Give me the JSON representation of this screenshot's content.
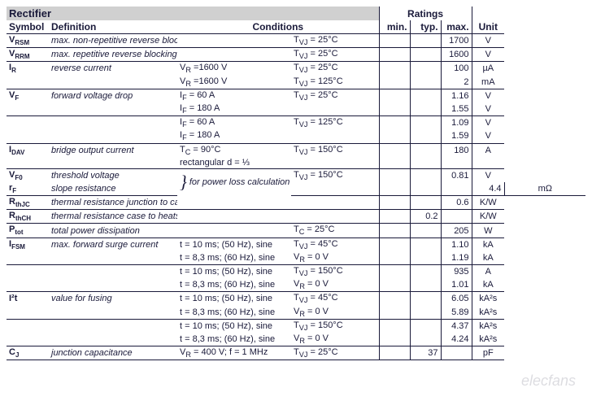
{
  "section_title": "Rectifier",
  "ratings_title": "Ratings",
  "headers": {
    "symbol": "Symbol",
    "definition": "Definition",
    "conditions": "Conditions",
    "min": "min.",
    "typ": "typ.",
    "max": "max.",
    "unit": "Unit"
  },
  "rows": [
    {
      "sym": "V",
      "sub": "RSM",
      "def": "max. non-repetitive reverse blocking voltage",
      "def_ital": true,
      "c1": "",
      "c2": "T<sub>VJ</sub> =  25°C",
      "min": "",
      "typ": "",
      "max": "1700",
      "unit": "V",
      "bb": true
    },
    {
      "sym": "V",
      "sub": "RRM",
      "def": "max. repetitive reverse blocking voltage",
      "def_ital": true,
      "c1": "",
      "c2": "T<sub>VJ</sub> =  25°C",
      "min": "",
      "typ": "",
      "max": "1600",
      "unit": "V",
      "bb": true
    },
    {
      "sym": "I",
      "sub": "R",
      "def": "reverse current",
      "def_ital": true,
      "c1": "V<sub>R</sub>  =1600 V",
      "c2": "T<sub>VJ</sub> =  25°C",
      "min": "",
      "typ": "",
      "max": "100",
      "unit": "µA"
    },
    {
      "sym": "",
      "sub": "",
      "def": "",
      "c1": "V<sub>R</sub>  =1600 V",
      "c2": "T<sub>VJ</sub> = 125°C",
      "min": "",
      "typ": "",
      "max": "2",
      "unit": "mA",
      "bb": true
    },
    {
      "sym": "V",
      "sub": "F",
      "def": "forward voltage drop",
      "def_ital": true,
      "c1": "I<sub>F</sub> =   60 A",
      "c2": "T<sub>VJ</sub> =  25°C",
      "min": "",
      "typ": "",
      "max": "1.16",
      "unit": "V"
    },
    {
      "sym": "",
      "sub": "",
      "def": "",
      "c1": "I<sub>F</sub> =  180 A",
      "c2": "",
      "min": "",
      "typ": "",
      "max": "1.55",
      "unit": "V",
      "bb": true
    },
    {
      "sym": "",
      "sub": "",
      "def": "",
      "c1": "I<sub>F</sub> =   60 A",
      "c2": "T<sub>VJ</sub> = 125°C",
      "min": "",
      "typ": "",
      "max": "1.09",
      "unit": "V"
    },
    {
      "sym": "",
      "sub": "",
      "def": "",
      "c1": "I<sub>F</sub> =  180 A",
      "c2": "",
      "min": "",
      "typ": "",
      "max": "1.59",
      "unit": "V",
      "bb": true
    },
    {
      "sym": "I",
      "sub": "DAV",
      "def": "bridge output current",
      "def_ital": true,
      "c1": "T<sub>C</sub> =  90°C",
      "c2": "T<sub>VJ</sub> = 150°C",
      "min": "",
      "typ": "",
      "max": "180",
      "unit": "A"
    },
    {
      "sym": "",
      "sub": "",
      "def": "",
      "c1": "rectangular       d = ⅓",
      "c2": "",
      "min": "",
      "typ": "",
      "max": "",
      "unit": "",
      "bb": true
    },
    {
      "sym": "V",
      "sub": "F0",
      "def": "threshold voltage",
      "def_ital": true,
      "c1": "",
      "c2": "T<sub>VJ</sub> = 150°C",
      "min": "",
      "typ": "",
      "max": "0.81",
      "unit": "V",
      "brace": true,
      "brace_text": "for power loss calculation only"
    },
    {
      "sym": "r",
      "sub": "F",
      "def": "slope resistance",
      "def_ital": true,
      "c1": "",
      "c2": "",
      "min": "",
      "typ": "",
      "max": "4.4",
      "unit": "mΩ",
      "bb": true
    },
    {
      "sym": "R",
      "sub": "thJC",
      "def": "thermal resistance junction to case",
      "def_ital": true,
      "c1": "",
      "c2": "",
      "min": "",
      "typ": "",
      "max": "0.6",
      "unit": "K/W",
      "bb": true
    },
    {
      "sym": "R",
      "sub": "thCH",
      "def": "thermal resistance case to heatsink",
      "def_ital": true,
      "c1": "",
      "c2": "",
      "min": "",
      "typ": "0.2",
      "max": "",
      "unit": "K/W",
      "bb": true
    },
    {
      "sym": "P",
      "sub": "tot",
      "def": "total power dissipation",
      "def_ital": true,
      "c1": "",
      "c2": "T<sub>C</sub>  =  25°C",
      "min": "",
      "typ": "",
      "max": "205",
      "unit": "W",
      "bb": true,
      "bt": true
    },
    {
      "sym": "I",
      "sub": "FSM",
      "def": "max. forward surge current",
      "def_ital": true,
      "c1": "t =  10 ms; (50 Hz), sine",
      "c2": "T<sub>VJ</sub> =  45°C",
      "min": "",
      "typ": "",
      "max": "1.10",
      "unit": "kA"
    },
    {
      "sym": "",
      "sub": "",
      "def": "",
      "c1": "t = 8,3 ms; (60 Hz), sine",
      "c2": "V<sub>R</sub>  = 0 V",
      "min": "",
      "typ": "",
      "max": "1.19",
      "unit": "kA",
      "bb": true
    },
    {
      "sym": "",
      "sub": "",
      "def": "",
      "c1": "t =  10 ms; (50 Hz), sine",
      "c2": "T<sub>VJ</sub> = 150°C",
      "min": "",
      "typ": "",
      "max": "935",
      "unit": "A"
    },
    {
      "sym": "",
      "sub": "",
      "def": "",
      "c1": "t = 8,3 ms; (60 Hz), sine",
      "c2": "V<sub>R</sub>  = 0 V",
      "min": "",
      "typ": "",
      "max": "1.01",
      "unit": "kA",
      "bb": true
    },
    {
      "sym": "I²t",
      "sub": "",
      "def": "value for fusing",
      "def_ital": true,
      "c1": "t =  10 ms; (50 Hz), sine",
      "c2": "T<sub>VJ</sub> =  45°C",
      "min": "",
      "typ": "",
      "max": "6.05",
      "unit": "kA²s"
    },
    {
      "sym": "",
      "sub": "",
      "def": "",
      "c1": "t = 8,3 ms; (60 Hz), sine",
      "c2": "V<sub>R</sub>  = 0 V",
      "min": "",
      "typ": "",
      "max": "5.89",
      "unit": "kA²s",
      "bb": true
    },
    {
      "sym": "",
      "sub": "",
      "def": "",
      "c1": "t =  10 ms; (50 Hz), sine",
      "c2": "T<sub>VJ</sub> = 150°C",
      "min": "",
      "typ": "",
      "max": "4.37",
      "unit": "kA²s"
    },
    {
      "sym": "",
      "sub": "",
      "def": "",
      "c1": "t = 8,3 ms; (60 Hz), sine",
      "c2": "V<sub>R</sub>  = 0 V",
      "min": "",
      "typ": "",
      "max": "4.24",
      "unit": "kA²s",
      "bb": true
    },
    {
      "sym": "C",
      "sub": "J",
      "def": "junction capacitance",
      "def_ital": true,
      "c1": "V<sub>R</sub> =  400 V; f = 1 MHz",
      "c2": "T<sub>VJ</sub> =  25°C",
      "min": "",
      "typ": "37",
      "max": "",
      "unit": "pF",
      "bb": true
    }
  ],
  "watermark": "elecfans"
}
